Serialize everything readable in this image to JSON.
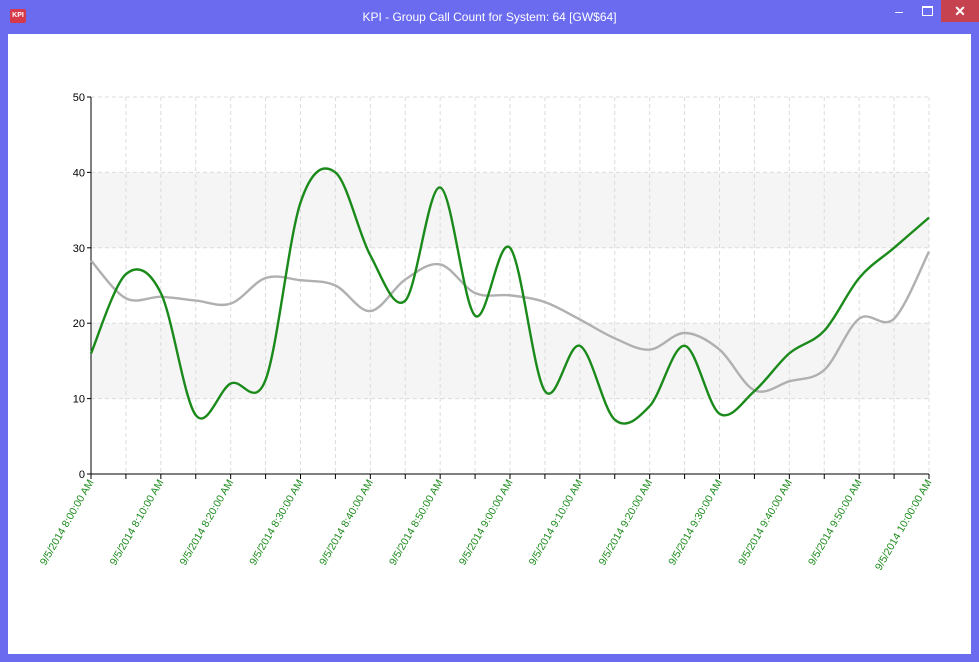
{
  "window": {
    "title": "KPI - Group Call Count for System: 64 [GW$64]",
    "icon_text": "KPI",
    "minimize_glyph": "–",
    "close_glyph": "✕",
    "accent": "#6b6bf0",
    "close_color": "#c7424f"
  },
  "chart_data": {
    "type": "line",
    "title": "",
    "xlabel": "",
    "ylabel": "",
    "ylim": [
      0,
      50
    ],
    "yticks": [
      0,
      10,
      20,
      30,
      40,
      50
    ],
    "ytick_labels": [
      "0",
      "10",
      "20",
      "30",
      "40",
      "50"
    ],
    "x_tick_labels": [
      "9/5/2014 8:00:00 AM",
      "9/5/2014 8:10:00 AM",
      "9/5/2014 8:20:00 AM",
      "9/5/2014 8:30:00 AM",
      "9/5/2014 8:40:00 AM",
      "9/5/2014 8:50:00 AM",
      "9/5/2014 9:00:00 AM",
      "9/5/2014 9:10:00 AM",
      "9/5/2014 9:20:00 AM",
      "9/5/2014 9:30:00 AM",
      "9/5/2014 9:40:00 AM",
      "9/5/2014 9:50:00 AM",
      "9/5/2014 10:00:00 AM"
    ],
    "x_minutes_range": [
      0,
      120
    ],
    "x_tick_interval_minutes": 10,
    "x_gridline_interval_minutes": 5,
    "grid": true,
    "bands": [
      [
        10,
        20
      ],
      [
        30,
        40
      ]
    ],
    "band_color": "#f5f5f5",
    "series": [
      {
        "color": "#1a8a1a",
        "x": [
          0,
          5,
          10,
          15,
          20,
          25,
          30,
          35,
          40,
          45,
          50,
          55,
          60,
          65,
          70,
          75,
          80,
          85,
          90,
          95,
          100,
          105,
          110,
          115,
          120
        ],
        "values": [
          16,
          26.5,
          24,
          7.8,
          12,
          12.5,
          36,
          40,
          29,
          23,
          38,
          21,
          30,
          11,
          17,
          7.2,
          9,
          17,
          8,
          11,
          16,
          19,
          26,
          30,
          34
        ]
      },
      {
        "color": "#b0b0b0",
        "x": [
          0,
          5,
          10,
          15,
          20,
          25,
          30,
          35,
          40,
          45,
          50,
          55,
          60,
          65,
          70,
          75,
          80,
          85,
          90,
          95,
          100,
          105,
          110,
          115,
          120
        ],
        "values": [
          28.3,
          23.3,
          23.5,
          23,
          22.6,
          26,
          25.7,
          25,
          21.6,
          25.8,
          27.8,
          24,
          23.7,
          22.8,
          20.5,
          18,
          16.5,
          18.7,
          16.5,
          11.1,
          12.3,
          13.8,
          20.6,
          20.6,
          29.5
        ]
      }
    ],
    "x_label_color": "#1a8a1a"
  }
}
